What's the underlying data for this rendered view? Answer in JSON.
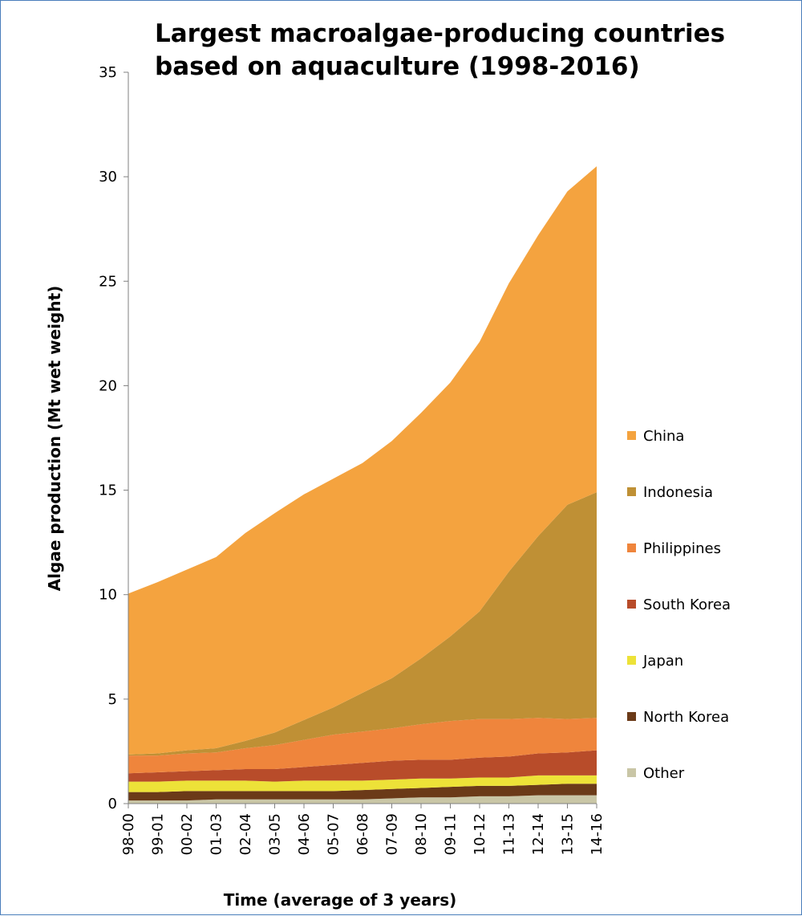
{
  "chart_data": {
    "type": "area",
    "stacked": true,
    "title_line1": "Largest macroalgae-producing countries",
    "title_line2": "based on aquaculture (1998-2016)",
    "xlabel": "Time  (average of 3 years)",
    "ylabel": "Algae production  (Mt wet weight)",
    "ylim": [
      0,
      35
    ],
    "y_ticks": [
      "0",
      "5",
      "10",
      "15",
      "20",
      "25",
      "30",
      "35"
    ],
    "grid": false,
    "legend_position": "right",
    "categories": [
      "98-00",
      "99-01",
      "00-02",
      "01-03",
      "02-04",
      "03-05",
      "04-06",
      "05-07",
      "06-08",
      "07-09",
      "08-10",
      "09-11",
      "10-12",
      "11-13",
      "12-14",
      "13-15",
      "14-16"
    ],
    "series": [
      {
        "name": "Other",
        "color": "#c9c6a6",
        "values": [
          0.15,
          0.15,
          0.15,
          0.2,
          0.2,
          0.2,
          0.2,
          0.2,
          0.2,
          0.25,
          0.3,
          0.3,
          0.35,
          0.35,
          0.4,
          0.4,
          0.4
        ]
      },
      {
        "name": "North Korea",
        "color": "#6b3a18",
        "values": [
          0.4,
          0.4,
          0.45,
          0.4,
          0.4,
          0.4,
          0.4,
          0.4,
          0.45,
          0.45,
          0.45,
          0.5,
          0.5,
          0.5,
          0.5,
          0.55,
          0.55
        ]
      },
      {
        "name": "Japan",
        "color": "#ede238",
        "values": [
          0.5,
          0.5,
          0.5,
          0.5,
          0.5,
          0.45,
          0.5,
          0.5,
          0.45,
          0.45,
          0.45,
          0.4,
          0.4,
          0.4,
          0.45,
          0.4,
          0.4
        ]
      },
      {
        "name": "South Korea",
        "color": "#b84c2a",
        "values": [
          0.4,
          0.45,
          0.45,
          0.5,
          0.55,
          0.6,
          0.65,
          0.75,
          0.85,
          0.9,
          0.9,
          0.9,
          0.95,
          1.0,
          1.05,
          1.1,
          1.2
        ]
      },
      {
        "name": "Philippines",
        "color": "#ef853c",
        "values": [
          0.85,
          0.8,
          0.85,
          0.85,
          1.0,
          1.15,
          1.3,
          1.45,
          1.5,
          1.55,
          1.7,
          1.85,
          1.85,
          1.8,
          1.7,
          1.6,
          1.55
        ]
      },
      {
        "name": "Indonesia",
        "color": "#bf9035",
        "values": [
          0.05,
          0.1,
          0.15,
          0.2,
          0.35,
          0.6,
          0.95,
          1.3,
          1.85,
          2.4,
          3.15,
          4.05,
          5.15,
          7.05,
          8.7,
          10.25,
          10.8
        ]
      },
      {
        "name": "China",
        "color": "#f4a33f",
        "values": [
          7.7,
          8.2,
          8.65,
          9.15,
          9.95,
          10.5,
          10.8,
          10.95,
          11.0,
          11.35,
          11.75,
          12.15,
          12.9,
          13.8,
          14.4,
          15.0,
          15.6
        ]
      }
    ],
    "legend_order": [
      "China",
      "Indonesia",
      "Philippines",
      "South Korea",
      "Japan",
      "North Korea",
      "Other"
    ]
  }
}
